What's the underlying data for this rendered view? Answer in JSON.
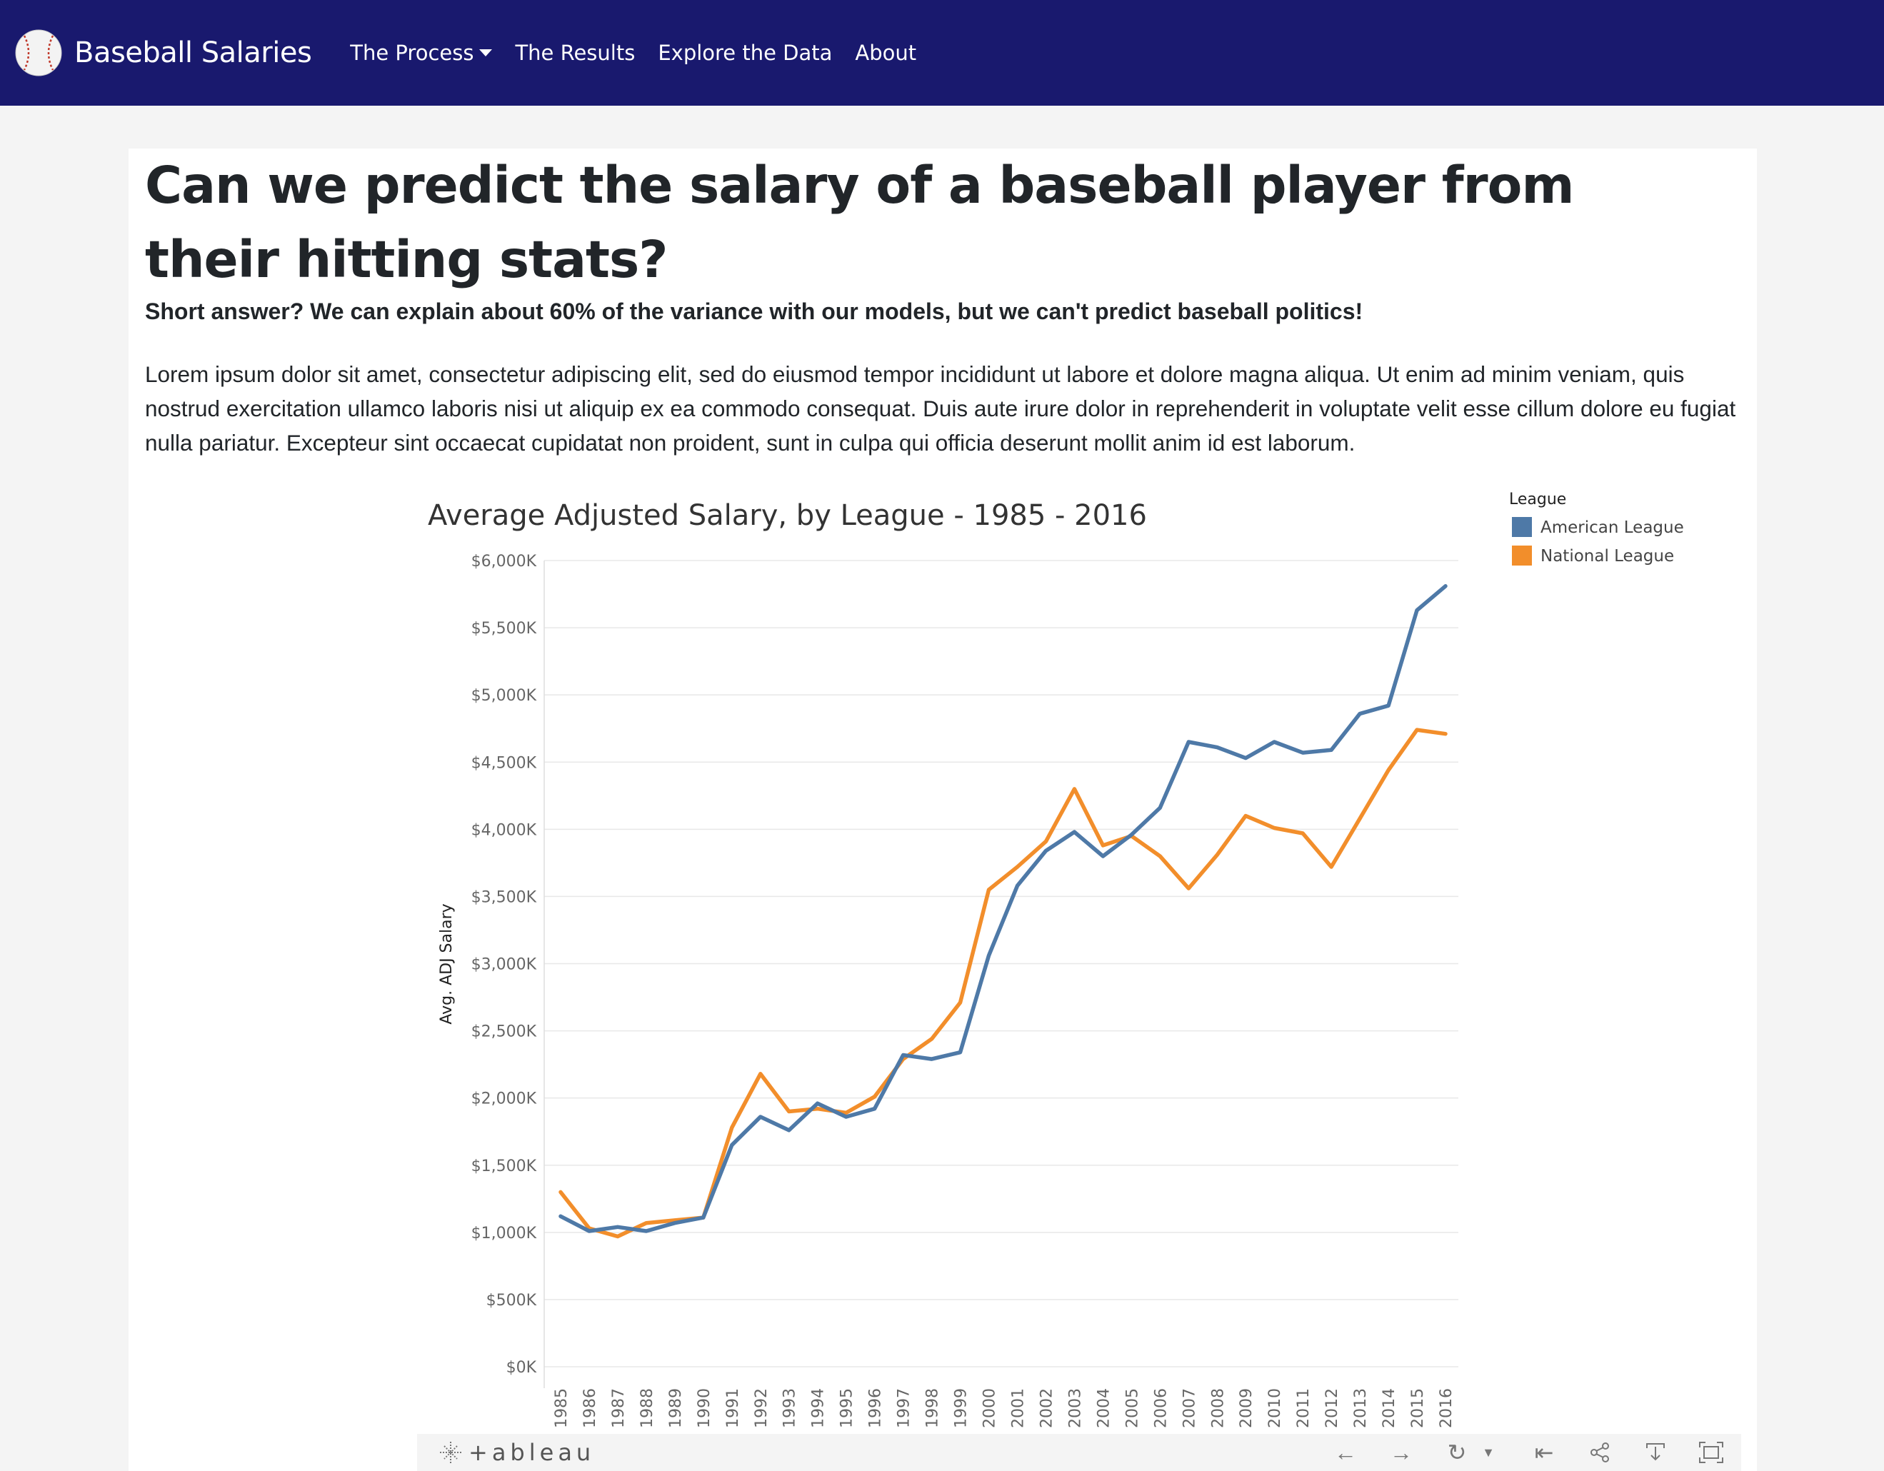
{
  "navbar": {
    "brand": "Baseball Salaries",
    "links": [
      {
        "label": "The Process",
        "dropdown": true
      },
      {
        "label": "The Results"
      },
      {
        "label": "Explore the Data"
      },
      {
        "label": "About"
      }
    ],
    "bg_color": "#19196e"
  },
  "main": {
    "title": "Can we predict the salary of a baseball player from their hitting stats?",
    "subtitle": "Short answer? We can explain about 60% of the variance with our models, but we can't predict baseball politics!",
    "body": "Lorem ipsum dolor sit amet, consectetur adipiscing elit, sed do eiusmod tempor incididunt ut labore et dolore magna aliqua. Ut enim ad minim veniam, quis nostrud exercitation ullamco laboris nisi ut aliquip ex ea commodo consequat. Duis aute irure dolor in reprehenderit in voluptate velit esse cillum dolore eu fugiat nulla pariatur. Excepteur sint occaecat cupidatat non proident, sunt in culpa qui officia deserunt mollit anim id est laborum."
  },
  "chart_data": {
    "type": "line",
    "title": "Average Adjusted Salary, by League - 1985 - 2016",
    "xlabel": "",
    "ylabel": "Avg. ADJ Salary",
    "ylim": [
      0,
      6000
    ],
    "yticks": [
      "$0K",
      "$500K",
      "$1,000K",
      "$1,500K",
      "$2,000K",
      "$2,500K",
      "$3,000K",
      "$3,500K",
      "$4,000K",
      "$4,500K",
      "$5,000K",
      "$5,500K",
      "$6,000K"
    ],
    "ytick_values": [
      0,
      500,
      1000,
      1500,
      2000,
      2500,
      3000,
      3500,
      4000,
      4500,
      5000,
      5500,
      6000
    ],
    "x": [
      "1985",
      "1986",
      "1987",
      "1988",
      "1989",
      "1990",
      "1991",
      "1992",
      "1993",
      "1994",
      "1995",
      "1996",
      "1997",
      "1998",
      "1999",
      "2000",
      "2001",
      "2002",
      "2003",
      "2004",
      "2005",
      "2006",
      "2007",
      "2008",
      "2009",
      "2010",
      "2011",
      "2012",
      "2013",
      "2014",
      "2015",
      "2016"
    ],
    "legend_title": "League",
    "legend_position": "top-right",
    "grid": true,
    "series": [
      {
        "name": "American League",
        "color": "#4e79a7",
        "values": [
          1120,
          1010,
          1040,
          1010,
          1070,
          1110,
          1650,
          1860,
          1760,
          1960,
          1860,
          1920,
          2320,
          2290,
          2340,
          3060,
          3580,
          3840,
          3980,
          3800,
          3960,
          4160,
          4650,
          4610,
          4530,
          4650,
          4570,
          4590,
          4860,
          4920,
          5630,
          5810
        ]
      },
      {
        "name": "National League",
        "color": "#f28e2b",
        "values": [
          1300,
          1030,
          970,
          1070,
          1090,
          1110,
          1780,
          2180,
          1900,
          1920,
          1890,
          2010,
          2290,
          2440,
          2710,
          3550,
          3720,
          3910,
          4300,
          3880,
          3950,
          3800,
          3560,
          3810,
          4100,
          4010,
          3970,
          3720,
          4080,
          4440,
          4740,
          4710
        ]
      }
    ]
  },
  "toolbar": {
    "logo_text": "+ableau"
  }
}
